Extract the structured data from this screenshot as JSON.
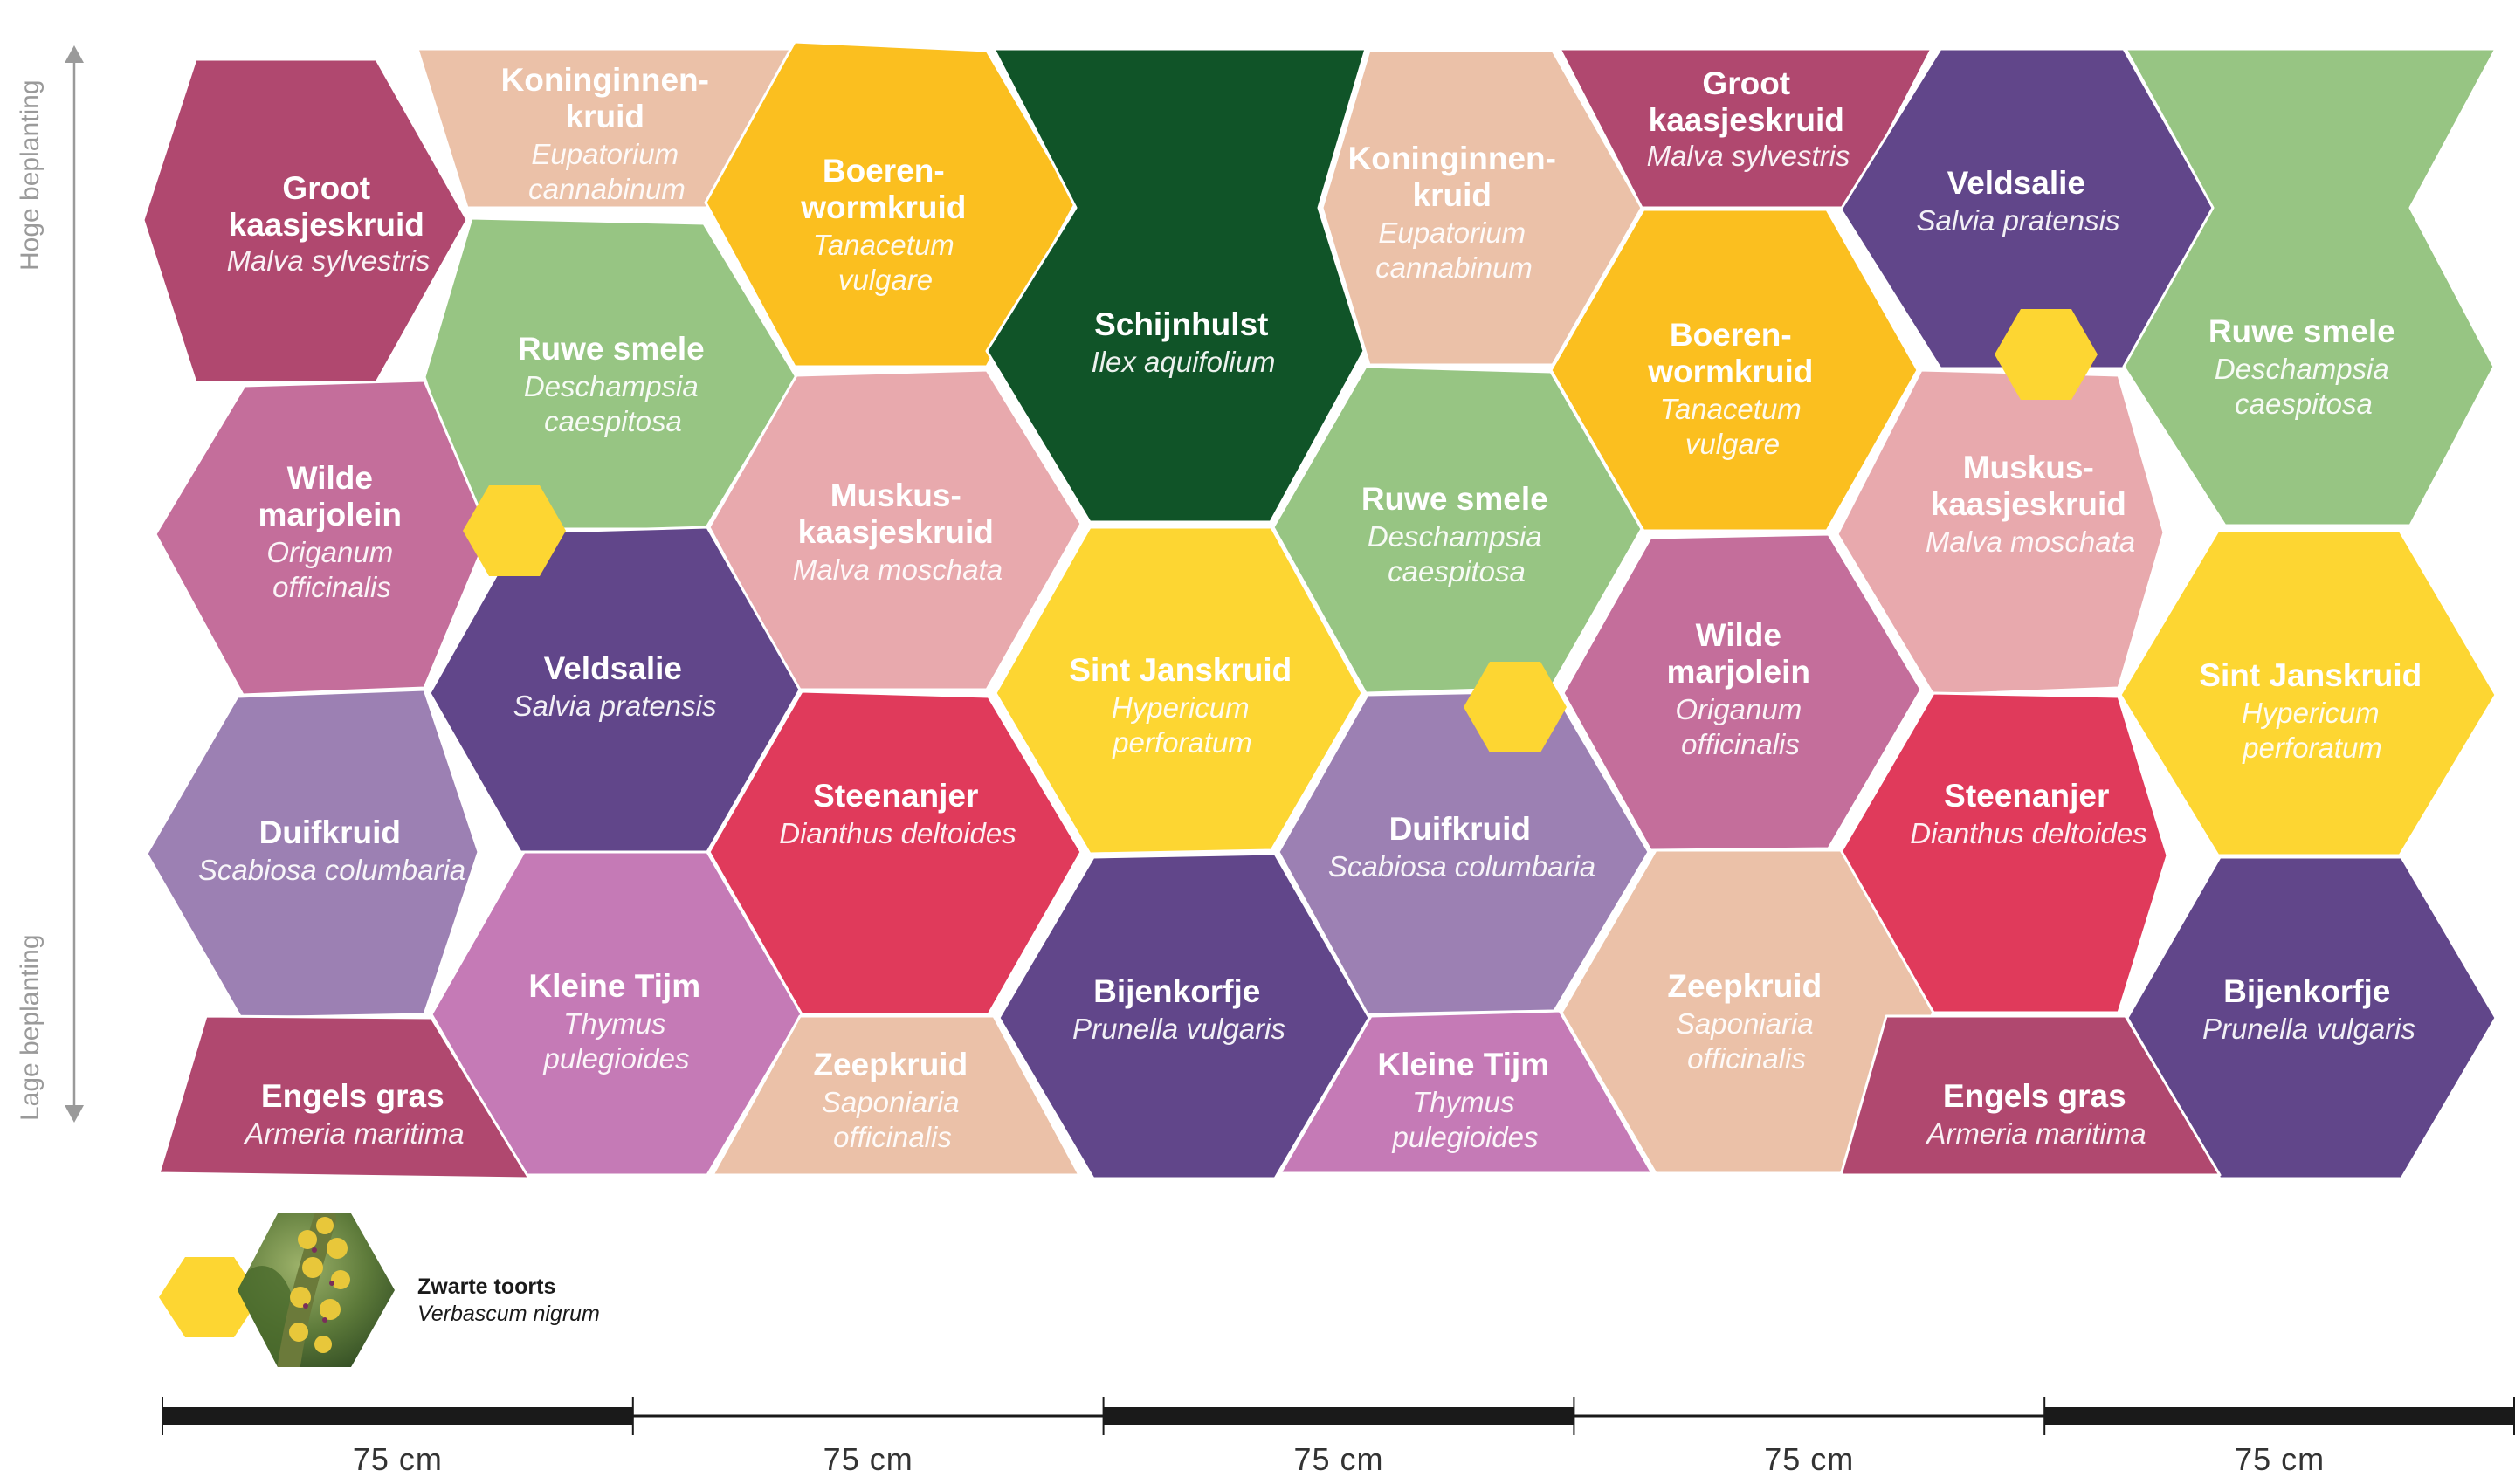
{
  "colors": {
    "magenta": "#B0486F",
    "peach": "#EBC1A8",
    "yellow_orange": "#FBBF1F",
    "dark_green": "#105428",
    "light_green": "#97C583",
    "pink": "#C46E9B",
    "rose": "#E8A9AD",
    "purple": "#61468A",
    "yellow": "#FDD632",
    "lavender": "#9C80B3",
    "red": "#E03A5B",
    "orchid": "#C57AB6",
    "yellow_dot": "#FDD632",
    "scale_bar": "#1a1a1a",
    "axis": "#9a9a9a"
  },
  "axis": {
    "top_label": "Hoge beplanting",
    "bottom_label": "Lage beplanting",
    "icon": "double-arrow-vertical-icon"
  },
  "plants": [
    {
      "name": [
        "Groot",
        "kaasjeskruid"
      ],
      "sci": [
        "Malva sylvestris"
      ],
      "color": "magenta"
    },
    {
      "name": [
        "Koninginnen-",
        "kruid"
      ],
      "sci": [
        "Eupatorium",
        "cannabinum"
      ],
      "color": "peach"
    },
    {
      "name": [
        "Boeren-",
        "wormkruid"
      ],
      "sci": [
        "Tanacetum",
        "vulgare"
      ],
      "color": "yellow_orange"
    },
    {
      "name": [
        "Schijnhulst"
      ],
      "sci": [
        "Ilex aquifolium"
      ],
      "color": "dark_green"
    },
    {
      "name": [
        "Koninginnen-",
        "kruid"
      ],
      "sci": [
        "Eupatorium",
        "cannabinum"
      ],
      "color": "peach"
    },
    {
      "name": [
        "Groot",
        "kaasjeskruid"
      ],
      "sci": [
        "Malva sylvestris"
      ],
      "color": "magenta"
    },
    {
      "name": [
        "Veldsalie"
      ],
      "sci": [
        "Salvia pratensis"
      ],
      "color": "purple"
    },
    {
      "name": [
        "Ruwe smele"
      ],
      "sci": [
        "Deschampsia",
        "caespitosa"
      ],
      "color": "light_green"
    },
    {
      "name": [
        "Ruwe smele"
      ],
      "sci": [
        "Deschampsia",
        "caespitosa"
      ],
      "color": "light_green"
    },
    {
      "name": [
        "Boeren-",
        "wormkruid"
      ],
      "sci": [
        "Tanacetum",
        "vulgare"
      ],
      "color": "yellow_orange"
    },
    {
      "name": [
        "Wilde",
        "marjolein"
      ],
      "sci": [
        "Origanum",
        "officinalis"
      ],
      "color": "pink"
    },
    {
      "name": [
        "Muskus-",
        "kaasjeskruid"
      ],
      "sci": [
        "Malva moschata"
      ],
      "color": "rose"
    },
    {
      "name": [
        "Ruwe smele"
      ],
      "sci": [
        "Deschampsia",
        "caespitosa"
      ],
      "color": "light_green"
    },
    {
      "name": [
        "Muskus-",
        "kaasjeskruid"
      ],
      "sci": [
        "Malva moschata"
      ],
      "color": "rose"
    },
    {
      "name": [
        "Veldsalie"
      ],
      "sci": [
        "Salvia pratensis"
      ],
      "color": "purple"
    },
    {
      "name": [
        "Sint Janskruid"
      ],
      "sci": [
        "Hypericum",
        "perforatum"
      ],
      "color": "yellow"
    },
    {
      "name": [
        "Wilde",
        "marjolein"
      ],
      "sci": [
        "Origanum",
        "officinalis"
      ],
      "color": "pink"
    },
    {
      "name": [
        "Sint Janskruid"
      ],
      "sci": [
        "Hypericum",
        "perforatum"
      ],
      "color": "yellow"
    },
    {
      "name": [
        "Duifkruid"
      ],
      "sci": [
        "Scabiosa columbaria"
      ],
      "color": "lavender"
    },
    {
      "name": [
        "Steenanjer"
      ],
      "sci": [
        "Dianthus deltoides"
      ],
      "color": "red"
    },
    {
      "name": [
        "Duifkruid"
      ],
      "sci": [
        "Scabiosa columbaria"
      ],
      "color": "lavender"
    },
    {
      "name": [
        "Steenanjer"
      ],
      "sci": [
        "Dianthus deltoides"
      ],
      "color": "red"
    },
    {
      "name": [
        "Kleine Tijm"
      ],
      "sci": [
        "Thymus",
        "pulegioides"
      ],
      "color": "orchid"
    },
    {
      "name": [
        "Bijenkorfje"
      ],
      "sci": [
        "Prunella vulgaris"
      ],
      "color": "purple"
    },
    {
      "name": [
        "Zeepkruid"
      ],
      "sci": [
        "Saponiaria",
        "officinalis"
      ],
      "color": "peach"
    },
    {
      "name": [
        "Bijenkorfje"
      ],
      "sci": [
        "Prunella vulgaris"
      ],
      "color": "purple"
    },
    {
      "name": [
        "Engels gras"
      ],
      "sci": [
        "Armeria maritima"
      ],
      "color": "magenta"
    },
    {
      "name": [
        "Zeepkruid"
      ],
      "sci": [
        "Saponiaria",
        "officinalis"
      ],
      "color": "peach"
    },
    {
      "name": [
        "Kleine Tijm"
      ],
      "sci": [
        "Thymus",
        "pulegioides"
      ],
      "color": "orchid"
    },
    {
      "name": [
        "Engels gras"
      ],
      "sci": [
        "Armeria maritima"
      ],
      "color": "magenta"
    }
  ],
  "legend": {
    "name": "Zwarte toorts",
    "sci": "Verbascum nigrum",
    "marker_color": "yellow_dot",
    "photo_icon": "verbascum-flower-photo-icon"
  },
  "scale": {
    "segments": [
      "75 cm",
      "75 cm",
      "75 cm",
      "75 cm",
      "75 cm"
    ],
    "fills": [
      "dark",
      "light",
      "dark",
      "light",
      "dark"
    ]
  }
}
